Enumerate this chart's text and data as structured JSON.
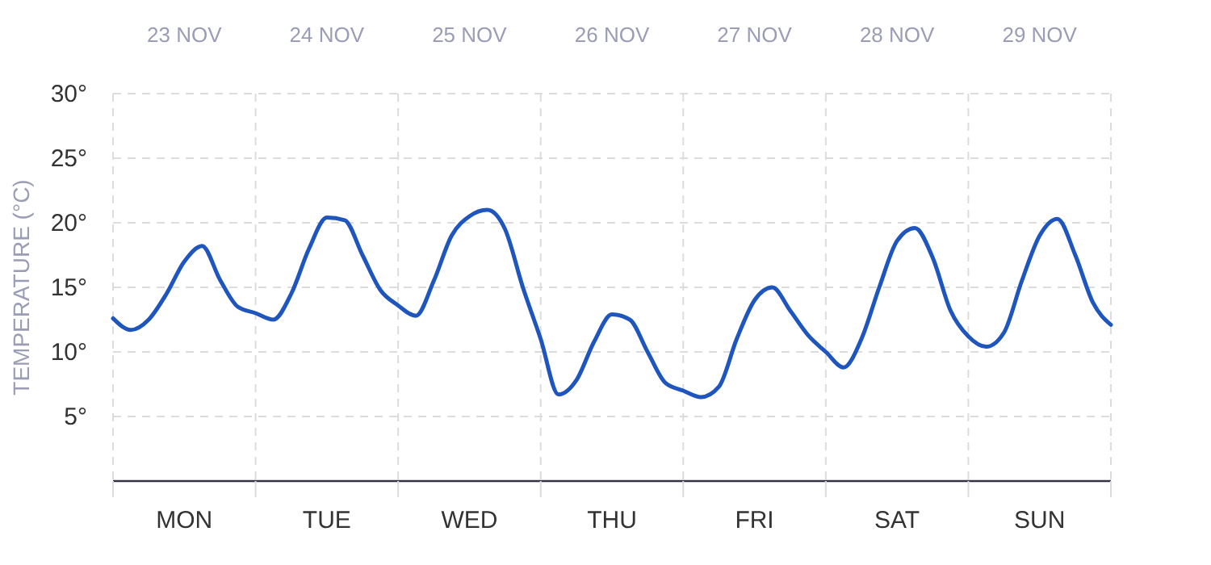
{
  "chart_data": {
    "type": "line",
    "ylabel": "TEMPERATURE (°C)",
    "categories": [
      null,
      null,
      null,
      null,
      "MON",
      null,
      null,
      null,
      null,
      null,
      null,
      null,
      "TUE",
      null,
      null,
      null,
      null,
      null,
      null,
      null,
      "WED",
      null,
      null,
      null,
      null,
      null,
      null,
      null,
      "THU",
      null,
      null,
      null,
      null,
      null,
      null,
      null,
      "FRI",
      null,
      null,
      null,
      null,
      null,
      null,
      null,
      "SAT",
      null,
      null,
      null,
      null,
      null,
      null,
      null,
      "SUN",
      null,
      null,
      null,
      null
    ],
    "series": [
      {
        "color": "#1f56be",
        "values": [
          12.6,
          11.7,
          12.5,
          14.5,
          17,
          18.2,
          15.6,
          13.5,
          13,
          12.5,
          14.5,
          18,
          20.4,
          20.2,
          17.5,
          14.8,
          13.6,
          12.8,
          15.5,
          19,
          20.5,
          21,
          19.5,
          15,
          11,
          6.7,
          7.8,
          10.8,
          12.9,
          12.5,
          10,
          7.6,
          7,
          6.5,
          7.3,
          11,
          14,
          15,
          13.2,
          11.3,
          10,
          8.8,
          11,
          15,
          18.6,
          19.6,
          17.3,
          13.2,
          11.2,
          10.4,
          11.5,
          15.5,
          19,
          20.3,
          17.5,
          13.8,
          12.1
        ]
      }
    ],
    "annotations": [
      "23 NOV",
      "24 NOV",
      "25 NOV",
      "26 NOV",
      "27 NOV",
      "28 NOV",
      "29 NOV"
    ],
    "ylim": [
      0,
      30
    ],
    "yticks": [
      {
        "value": 5,
        "label": "5°"
      },
      {
        "value": 10,
        "label": "10°"
      },
      {
        "value": 15,
        "label": "15°"
      },
      {
        "value": 20,
        "label": "20°"
      },
      {
        "value": 25,
        "label": "25°"
      },
      {
        "value": 30,
        "label": "30°"
      }
    ],
    "grid": true,
    "marker": "none",
    "line_style": "solid"
  }
}
